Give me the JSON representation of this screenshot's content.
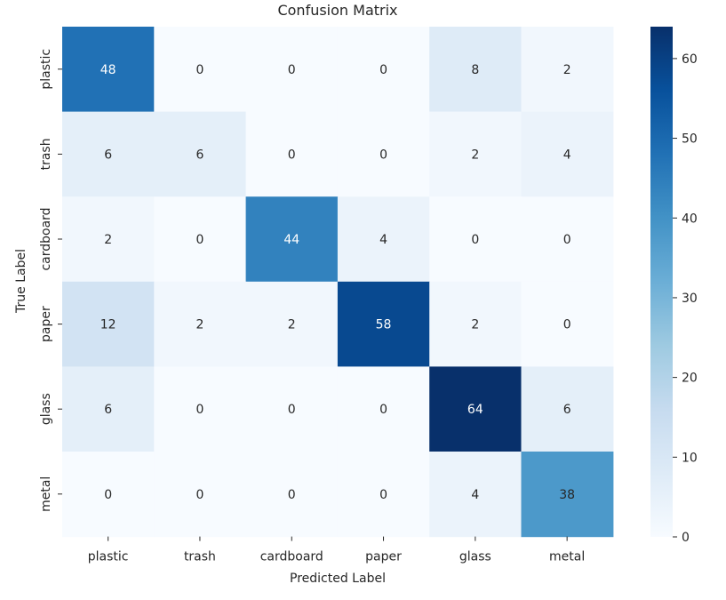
{
  "chart_data": {
    "type": "heatmap",
    "title": "Confusion Matrix",
    "xlabel": "Predicted Label",
    "ylabel": "True Label",
    "x_categories": [
      "plastic",
      "trash",
      "cardboard",
      "paper",
      "glass",
      "metal"
    ],
    "y_categories": [
      "plastic",
      "trash",
      "cardboard",
      "paper",
      "glass",
      "metal"
    ],
    "values": [
      [
        48,
        0,
        0,
        0,
        8,
        2
      ],
      [
        6,
        6,
        0,
        0,
        2,
        4
      ],
      [
        2,
        0,
        44,
        4,
        0,
        0
      ],
      [
        12,
        2,
        2,
        58,
        2,
        0
      ],
      [
        6,
        0,
        0,
        0,
        64,
        6
      ],
      [
        0,
        0,
        0,
        0,
        4,
        38
      ]
    ],
    "colormap": "Blues",
    "vmin": 0,
    "vmax": 64,
    "colorbar_ticks": [
      0,
      10,
      20,
      30,
      40,
      50,
      60
    ],
    "annotated": true,
    "grid": false
  }
}
